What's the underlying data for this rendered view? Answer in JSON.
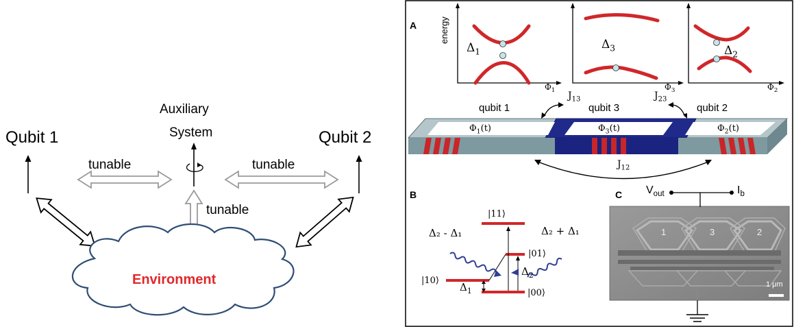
{
  "left_diagram": {
    "qubit1": "Qubit 1",
    "qubit2": "Qubit 2",
    "aux_line1": "Auxiliary",
    "aux_line2": "System",
    "tunable_left": "tunable",
    "tunable_right": "tunable",
    "tunable_center": "tunable",
    "environment": "Environment",
    "colors": {
      "environment_text": "#e2272b",
      "cloud_stroke": "#2e4d74",
      "tunable_arrow": "#9a9a9a"
    }
  },
  "right_figure": {
    "panel_a": {
      "letter": "A",
      "ylabel": "energy",
      "graphs": [
        {
          "gap_symbol": "Δ",
          "gap_sub": "1",
          "x_symbol": "Φ",
          "x_sub": "1"
        },
        {
          "gap_symbol": "Δ",
          "gap_sub": "3",
          "x_symbol": "Φ",
          "x_sub": "3"
        },
        {
          "gap_symbol": "Δ",
          "gap_sub": "2",
          "x_symbol": "Φ",
          "x_sub": "2"
        }
      ],
      "qubit_labels": [
        "qubit 1",
        "qubit 3",
        "qubit 2"
      ],
      "flux_labels": [
        {
          "symbol": "Φ",
          "sub": "1",
          "suffix": "(t)"
        },
        {
          "symbol": "Φ",
          "sub": "3",
          "suffix": "(t)"
        },
        {
          "symbol": "Φ",
          "sub": "2",
          "suffix": "(t)"
        }
      ],
      "couplings": [
        {
          "symbol": "J",
          "sub": "13"
        },
        {
          "symbol": "J",
          "sub": "23"
        },
        {
          "symbol": "J",
          "sub": "12"
        }
      ]
    },
    "panel_b": {
      "letter": "B",
      "kets": [
        "|11⟩",
        "|10⟩",
        "|01⟩",
        "|00⟩"
      ],
      "drive_left": "Δ₂ - Δ₁",
      "drive_right": "Δ₂ + Δ₁",
      "delta1": {
        "symbol": "Δ",
        "sub": "1"
      },
      "delta2": {
        "symbol": "Δ",
        "sub": "2"
      }
    },
    "panel_c": {
      "letter": "C",
      "vout": {
        "symbol": "V",
        "sub": "out"
      },
      "ib": {
        "symbol": "I",
        "sub": "b"
      },
      "loops": [
        "1",
        "3",
        "2"
      ],
      "scalebar": "1 μm"
    }
  }
}
